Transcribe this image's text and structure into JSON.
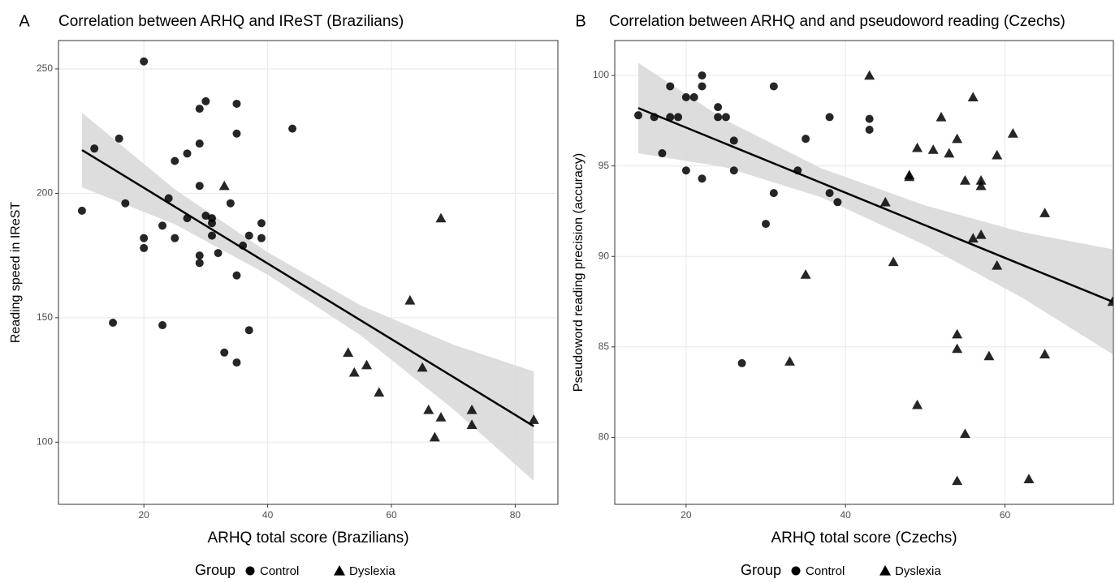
{
  "chart_data": [
    {
      "type": "scatter",
      "panel_label": "A",
      "title": "Correlation between ARHQ and IReST (Brazilians)",
      "x_label": "ARHQ total score (Brazilians)",
      "y_label": "Reading speed in IReST",
      "xlim": [
        6.2,
        86.9
      ],
      "ylim": [
        75,
        261.4
      ],
      "xticks": [
        20,
        40,
        60,
        80
      ],
      "yticks": [
        100,
        150,
        200,
        250
      ],
      "grid": true,
      "legend_title": "Group",
      "series": [
        {
          "name": "Control",
          "marker": "circle",
          "color": "#000000",
          "x": [
            10,
            12,
            16,
            17,
            20,
            20,
            20,
            15,
            23,
            23,
            24,
            25,
            25,
            27,
            27,
            29,
            29,
            29,
            29,
            29,
            30,
            30,
            31,
            31,
            31,
            32,
            33,
            34,
            35,
            35,
            35,
            35,
            36,
            37,
            37,
            39,
            39,
            44
          ],
          "values": [
            193,
            218,
            222,
            196,
            253,
            182,
            178,
            148,
            187,
            147,
            198,
            213,
            182,
            216,
            190,
            234,
            220,
            203,
            175,
            172,
            237,
            191,
            190,
            188,
            183,
            176,
            136,
            196,
            236,
            224,
            167,
            132,
            179,
            183,
            145,
            188,
            182,
            226
          ]
        },
        {
          "name": "Dyslexia",
          "marker": "triangle",
          "color": "#000000",
          "x": [
            33,
            53,
            54,
            56,
            58,
            63,
            65,
            66,
            67,
            68,
            68,
            73,
            73,
            83
          ],
          "values": [
            203,
            136,
            128,
            131,
            120,
            157,
            130,
            113,
            102,
            190,
            110,
            113,
            107,
            109
          ]
        }
      ],
      "fit": {
        "color": "#000000",
        "band_color": "#d9d9d9",
        "x": [
          10,
          25,
          40,
          55,
          70,
          83
        ],
        "values": [
          217.4,
          194.6,
          171.8,
          149,
          126.2,
          106.4
        ],
        "lower": [
          202.4,
          187.6,
          167.3,
          143,
          113.2,
          84.4
        ],
        "upper": [
          232.4,
          201.6,
          176.3,
          155,
          139.2,
          128.4
        ]
      }
    },
    {
      "type": "scatter",
      "panel_label": "B",
      "title": "Correlation between ARHQ and and pseudoword reading (Czechs)",
      "x_label": "ARHQ total score (Czechs)",
      "y_label": "Pseudoword reading precision (accuracy)",
      "xlim": [
        11.05,
        73.6
      ],
      "ylim": [
        76.3,
        101.93
      ],
      "xticks": [
        20,
        40,
        60
      ],
      "yticks": [
        80,
        85,
        90,
        95,
        100
      ],
      "grid": true,
      "legend_title": "Group",
      "series": [
        {
          "name": "Control",
          "marker": "circle",
          "color": "#000000",
          "x": [
            14,
            16,
            18,
            18,
            17,
            19,
            20,
            20,
            21,
            22,
            22,
            22,
            24,
            24,
            25,
            26,
            26,
            27,
            30,
            31,
            31,
            34,
            35,
            38,
            38,
            39,
            43,
            43
          ],
          "values": [
            97.8,
            97.7,
            99.4,
            97.7,
            95.7,
            97.7,
            98.8,
            94.75,
            98.8,
            100,
            99.4,
            94.3,
            98.25,
            97.7,
            97.7,
            96.4,
            94.75,
            84.1,
            91.8,
            99.4,
            93.5,
            94.75,
            96.5,
            97.7,
            93.5,
            93.0,
            97.6,
            97.0
          ]
        },
        {
          "name": "Dyslexia",
          "marker": "triangle",
          "color": "#000000",
          "x": [
            43,
            33,
            35,
            45,
            46,
            48,
            48,
            49,
            49,
            51,
            52,
            53,
            54,
            54,
            54,
            54,
            55,
            55,
            56,
            56,
            57,
            57,
            57,
            58,
            59,
            59,
            61,
            65,
            65,
            63,
            73.5
          ],
          "values": [
            100,
            84.2,
            89,
            93,
            89.7,
            94.4,
            94.5,
            96,
            81.8,
            95.9,
            97.7,
            95.7,
            96.5,
            85.7,
            84.9,
            77.6,
            94.2,
            80.2,
            98.8,
            91,
            94.2,
            93.9,
            91.2,
            84.5,
            95.6,
            89.5,
            96.8,
            92.4,
            84.6,
            77.7,
            87.5
          ]
        }
      ],
      "fit": {
        "color": "#000000",
        "band_color": "#d9d9d9",
        "x": [
          14,
          25,
          37,
          50,
          62,
          73.5
        ],
        "values": [
          98.2,
          96.22,
          94.06,
          91.72,
          89.56,
          87.5
        ],
        "lower": [
          95.7,
          94.92,
          93.26,
          90.62,
          87.76,
          84.6
        ],
        "upper": [
          100.7,
          97.52,
          94.86,
          92.82,
          91.36,
          90.4
        ]
      }
    }
  ]
}
